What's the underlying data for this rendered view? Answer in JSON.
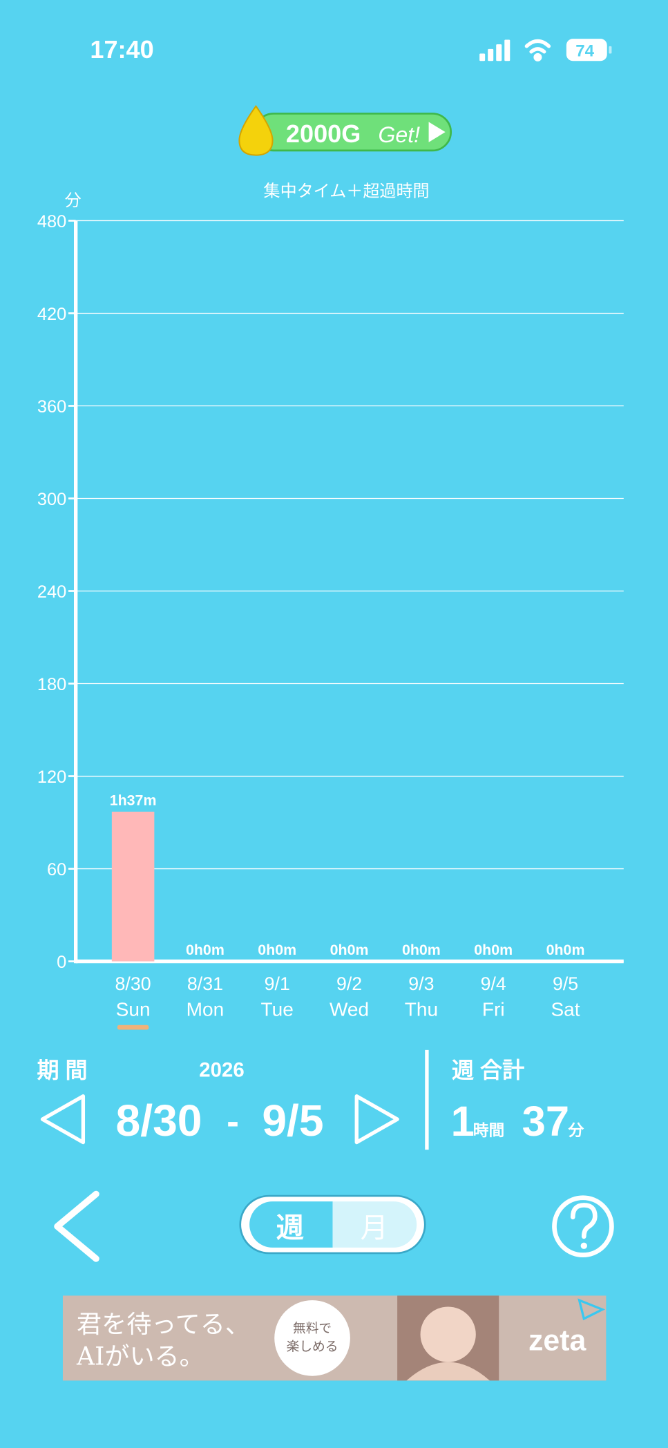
{
  "status_bar": {
    "time": "17:40",
    "battery": "74"
  },
  "reward": {
    "amount": "2000G",
    "action": "Get!"
  },
  "chart_data": {
    "type": "bar",
    "title": "集中タイム＋超過時間",
    "y_label": "分",
    "categories": [
      "8/30",
      "8/31",
      "9/1",
      "9/2",
      "9/3",
      "9/4",
      "9/5"
    ],
    "weekdays": [
      "Sun",
      "Mon",
      "Tue",
      "Wed",
      "Thu",
      "Fri",
      "Sat"
    ],
    "values": [
      97,
      0,
      0,
      0,
      0,
      0,
      0
    ],
    "value_labels": [
      "1h37m",
      "0h0m",
      "0h0m",
      "0h0m",
      "0h0m",
      "0h0m",
      "0h0m"
    ],
    "color": "#ffb8b8",
    "ylim": [
      0,
      480
    ],
    "yticks": [
      0,
      60,
      120,
      180,
      240,
      300,
      360,
      420,
      480
    ],
    "grid": true
  },
  "period": {
    "label": "期 間",
    "year": "2026",
    "start": "8/30",
    "separator": "-",
    "end": "9/5"
  },
  "weekly_total": {
    "label": "週 合計",
    "hours": "1",
    "hours_unit": "時間",
    "minutes": "37",
    "minutes_unit": "分"
  },
  "tabs": {
    "week": "週",
    "month": "月"
  },
  "ad": {
    "line1": "君を待ってる、",
    "line2": "AIがいる。",
    "badge1": "無料で",
    "badge2": "楽しめる",
    "brand": "zeta"
  }
}
